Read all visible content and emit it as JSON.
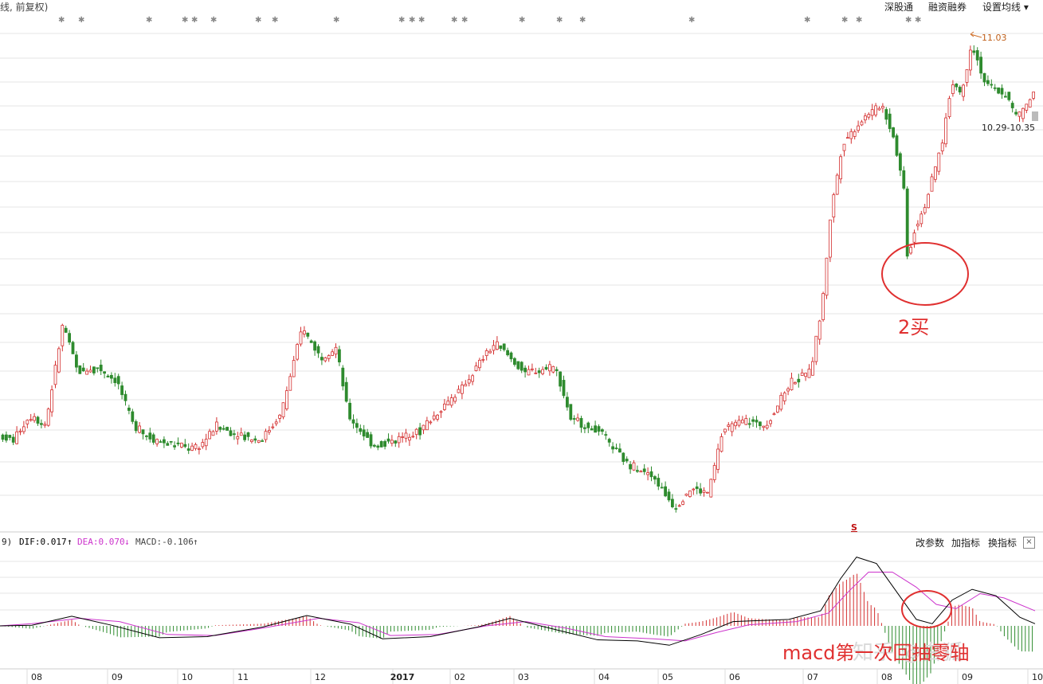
{
  "header": {
    "title": "线, 前复权)",
    "buttons": [
      "深股通",
      "融资融券",
      "设置均线"
    ],
    "dropdown_arrow": "▾"
  },
  "price_labels": {
    "high": "11.03",
    "range": "10.29-10.35"
  },
  "annotations": {
    "buy2": "2买",
    "macd_note": "macd第一次回抽零轴",
    "s_marker": "S",
    "watermark": "知乎 @白狐"
  },
  "macd_header": {
    "prefix": "9)",
    "dif": "DIF:0.017",
    "dif_arrow": "↑",
    "dea": "DEA:0.070",
    "dea_arrow": "↓",
    "macd": "MACD:-0.106",
    "macd_arrow": "↑",
    "tools": [
      "改参数",
      "加指标",
      "换指标"
    ],
    "close": "×"
  },
  "colors": {
    "up": "#d43030",
    "down": "#2e8b2e",
    "dif": "#000000",
    "dea": "#cc33cc",
    "annotation": "#e03030",
    "grid": "#e6e6e6"
  },
  "chart_data": {
    "type": "candlestick",
    "xlabels": [
      "08",
      "09",
      "10",
      "11",
      "12",
      "2017",
      "02",
      "03",
      "04",
      "05",
      "06",
      "07",
      "08",
      "09",
      "10"
    ],
    "max_price": 11.03,
    "range_label": "10.29-10.35",
    "price_path": [
      [
        0,
        0.17
      ],
      [
        20,
        0.16
      ],
      [
        40,
        0.21
      ],
      [
        60,
        0.19
      ],
      [
        82,
        0.4
      ],
      [
        100,
        0.3
      ],
      [
        125,
        0.31
      ],
      [
        150,
        0.28
      ],
      [
        170,
        0.19
      ],
      [
        195,
        0.16
      ],
      [
        220,
        0.15
      ],
      [
        250,
        0.14
      ],
      [
        275,
        0.19
      ],
      [
        300,
        0.17
      ],
      [
        330,
        0.16
      ],
      [
        355,
        0.21
      ],
      [
        382,
        0.39
      ],
      [
        405,
        0.33
      ],
      [
        425,
        0.35
      ],
      [
        440,
        0.21
      ],
      [
        470,
        0.15
      ],
      [
        500,
        0.16
      ],
      [
        530,
        0.18
      ],
      [
        560,
        0.23
      ],
      [
        585,
        0.27
      ],
      [
        605,
        0.32
      ],
      [
        625,
        0.36
      ],
      [
        660,
        0.3
      ],
      [
        700,
        0.31
      ],
      [
        720,
        0.2
      ],
      [
        755,
        0.18
      ],
      [
        790,
        0.11
      ],
      [
        820,
        0.09
      ],
      [
        850,
        0.02
      ],
      [
        870,
        0.06
      ],
      [
        892,
        0.05
      ],
      [
        910,
        0.18
      ],
      [
        935,
        0.2
      ],
      [
        965,
        0.19
      ],
      [
        995,
        0.28
      ],
      [
        1020,
        0.3
      ],
      [
        1035,
        0.44
      ],
      [
        1045,
        0.62
      ],
      [
        1060,
        0.77
      ],
      [
        1085,
        0.82
      ],
      [
        1110,
        0.85
      ],
      [
        1125,
        0.78
      ],
      [
        1138,
        0.67
      ],
      [
        1142,
        0.53
      ],
      [
        1150,
        0.59
      ],
      [
        1165,
        0.65
      ],
      [
        1185,
        0.77
      ],
      [
        1198,
        0.9
      ],
      [
        1210,
        0.87
      ],
      [
        1222,
        0.98
      ],
      [
        1240,
        0.89
      ],
      [
        1265,
        0.87
      ],
      [
        1280,
        0.82
      ],
      [
        1299,
        0.87
      ]
    ],
    "macd_lines": {
      "dif": [
        [
          0,
          0.0
        ],
        [
          40,
          0.03
        ],
        [
          90,
          0.45
        ],
        [
          140,
          0.03
        ],
        [
          200,
          -0.55
        ],
        [
          260,
          -0.5
        ],
        [
          330,
          -0.05
        ],
        [
          385,
          0.48
        ],
        [
          440,
          0.08
        ],
        [
          480,
          -0.6
        ],
        [
          540,
          -0.5
        ],
        [
          600,
          -0.05
        ],
        [
          640,
          0.35
        ],
        [
          700,
          -0.2
        ],
        [
          750,
          -0.65
        ],
        [
          800,
          -0.7
        ],
        [
          840,
          -0.9
        ],
        [
          880,
          -0.4
        ],
        [
          920,
          0.2
        ],
        [
          990,
          0.3
        ],
        [
          1030,
          0.7
        ],
        [
          1055,
          2.2
        ],
        [
          1075,
          3.2
        ],
        [
          1100,
          2.9
        ],
        [
          1125,
          1.6
        ],
        [
          1150,
          0.3
        ],
        [
          1170,
          0.1
        ],
        [
          1195,
          1.2
        ],
        [
          1220,
          1.7
        ],
        [
          1250,
          1.4
        ],
        [
          1280,
          0.4
        ],
        [
          1299,
          0.1
        ]
      ],
      "dea": [
        [
          0,
          0.0
        ],
        [
          40,
          0.1
        ],
        [
          100,
          0.35
        ],
        [
          150,
          0.2
        ],
        [
          210,
          -0.4
        ],
        [
          270,
          -0.45
        ],
        [
          330,
          -0.1
        ],
        [
          400,
          0.35
        ],
        [
          450,
          0.15
        ],
        [
          490,
          -0.45
        ],
        [
          550,
          -0.4
        ],
        [
          610,
          0.0
        ],
        [
          660,
          0.2
        ],
        [
          710,
          -0.1
        ],
        [
          760,
          -0.5
        ],
        [
          820,
          -0.6
        ],
        [
          860,
          -0.7
        ],
        [
          900,
          -0.3
        ],
        [
          940,
          0.05
        ],
        [
          1000,
          0.2
        ],
        [
          1040,
          0.6
        ],
        [
          1065,
          1.6
        ],
        [
          1090,
          2.5
        ],
        [
          1120,
          2.5
        ],
        [
          1150,
          1.8
        ],
        [
          1175,
          1.0
        ],
        [
          1200,
          0.8
        ],
        [
          1230,
          1.5
        ],
        [
          1260,
          1.3
        ],
        [
          1299,
          0.7
        ]
      ]
    }
  }
}
